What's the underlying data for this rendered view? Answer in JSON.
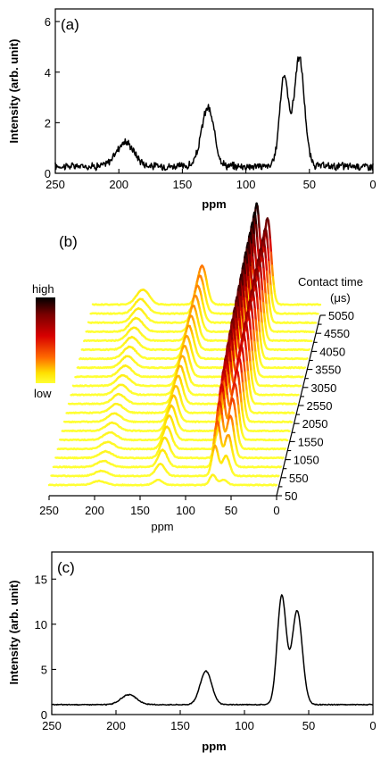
{
  "chart_data": [
    {
      "panel": "a",
      "type": "line",
      "panel_label": "(a)",
      "xlabel": "ppm",
      "ylabel": "Intensity (arb. unit)",
      "xlim": [
        250,
        0
      ],
      "ylim": [
        0,
        6.5
      ],
      "x_ticks": [
        250,
        200,
        150,
        100,
        50,
        0
      ],
      "y_ticks": [
        0,
        2,
        4,
        6
      ],
      "peaks": [
        {
          "center": 195,
          "height": 0.95,
          "width": 7
        },
        {
          "center": 130,
          "height": 2.3,
          "width": 5
        },
        {
          "center": 70,
          "height": 3.55,
          "width": 3.5
        },
        {
          "center": 58,
          "height": 4.3,
          "width": 4
        }
      ],
      "baseline": 0.28,
      "noise": 0.12
    },
    {
      "panel": "b",
      "type": "line",
      "panel_label": "(b)",
      "xlabel": "ppm",
      "xlim": [
        250,
        0
      ],
      "x_ticks": [
        250,
        200,
        150,
        100,
        50,
        0
      ],
      "legend_title_1": "Contact time",
      "legend_title_2": "(μs)",
      "colorbar_high": "high",
      "colorbar_low": "low",
      "colorbar_colors": [
        "#000000",
        "#7a0000",
        "#d80000",
        "#ff6a00",
        "#ffe000",
        "#ffff33"
      ],
      "contact_times": [
        50,
        300,
        550,
        800,
        1050,
        1300,
        1550,
        1800,
        2050,
        2300,
        2550,
        2800,
        3050,
        3300,
        3550,
        3800,
        4050,
        4300,
        4550,
        4800,
        5050
      ],
      "contact_time_labels": [
        "50",
        "550",
        "1050",
        "1550",
        "2050",
        "2550",
        "3050",
        "3550",
        "4050",
        "4550",
        "5050"
      ],
      "peak_heights_rel": {
        "195": [
          0.04,
          0.05,
          0.06,
          0.065,
          0.07,
          0.075,
          0.08,
          0.085,
          0.09,
          0.095,
          0.1,
          0.105,
          0.11,
          0.115,
          0.12,
          0.125,
          0.13,
          0.135,
          0.14,
          0.145,
          0.15
        ],
        "130": [
          0.05,
          0.12,
          0.17,
          0.2,
          0.22,
          0.24,
          0.25,
          0.26,
          0.27,
          0.28,
          0.29,
          0.3,
          0.31,
          0.32,
          0.33,
          0.34,
          0.35,
          0.36,
          0.37,
          0.38,
          0.39
        ],
        "70": [
          0.1,
          0.3,
          0.45,
          0.56,
          0.64,
          0.7,
          0.74,
          0.78,
          0.81,
          0.84,
          0.86,
          0.88,
          0.9,
          0.92,
          0.94,
          0.96,
          0.97,
          0.98,
          0.99,
          1.0,
          1.0
        ],
        "58": [
          0.05,
          0.2,
          0.32,
          0.42,
          0.5,
          0.56,
          0.6,
          0.64,
          0.67,
          0.7,
          0.72,
          0.74,
          0.76,
          0.78,
          0.8,
          0.81,
          0.82,
          0.83,
          0.84,
          0.85,
          0.86
        ]
      }
    },
    {
      "panel": "c",
      "type": "line",
      "panel_label": "(c)",
      "xlabel": "ppm",
      "ylabel": "Intensity (arb. unit)",
      "xlim": [
        250,
        0
      ],
      "ylim": [
        0,
        18
      ],
      "x_ticks": [
        250,
        200,
        150,
        100,
        50,
        0
      ],
      "y_ticks": [
        0,
        5,
        10,
        15
      ],
      "peaks": [
        {
          "center": 190,
          "height": 1.1,
          "width": 6
        },
        {
          "center": 130,
          "height": 3.7,
          "width": 4.5
        },
        {
          "center": 71,
          "height": 12.0,
          "width": 3.5
        },
        {
          "center": 59,
          "height": 10.4,
          "width": 4
        }
      ],
      "baseline": 1.1,
      "noise": 0.04
    }
  ]
}
